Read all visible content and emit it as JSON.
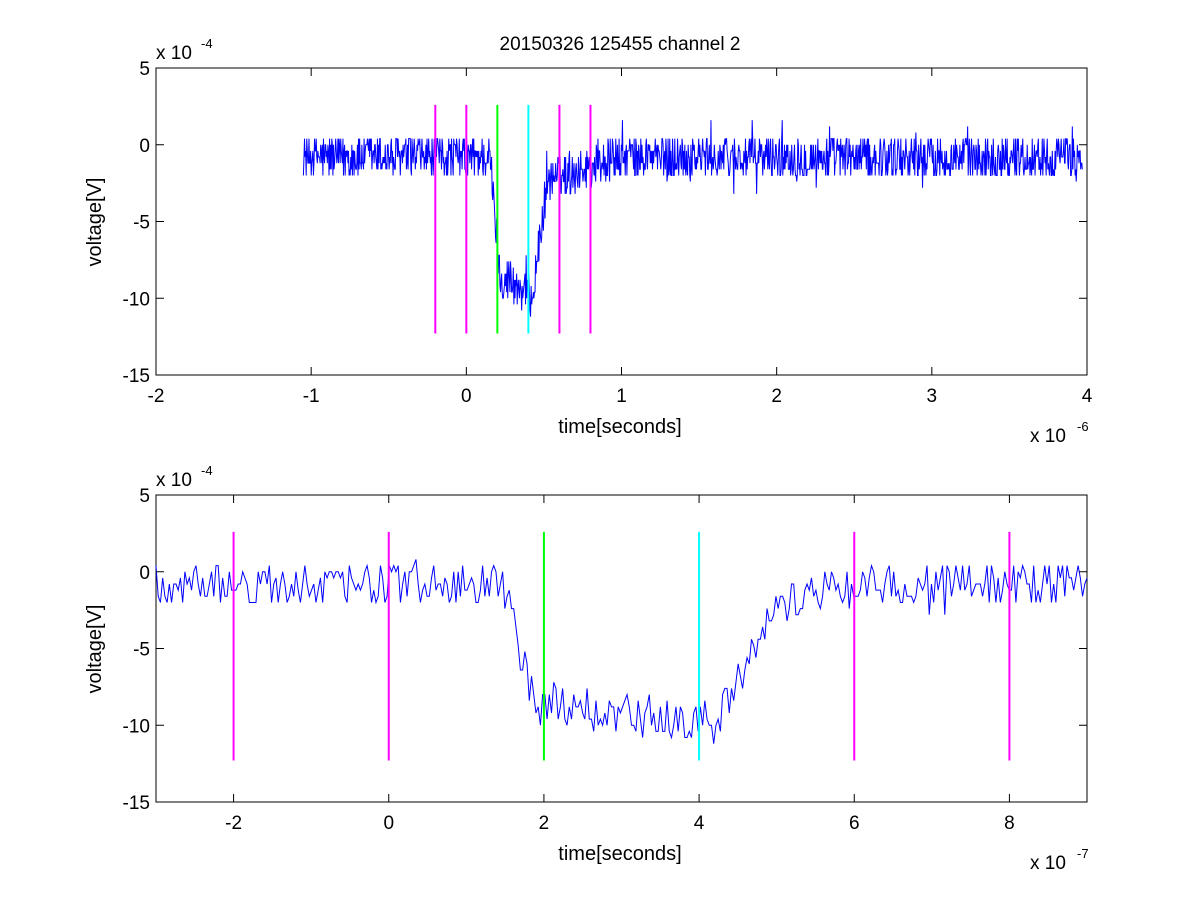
{
  "figure": {
    "title": "20150326 125455 channel 2"
  },
  "chart_data": [
    {
      "type": "line",
      "title": "20150326 125455 channel 2",
      "xlabel": "time[seconds]",
      "ylabel": "voltage[V]",
      "x_exponent_label": "x 10",
      "x_exponent": "-6",
      "y_exponent_label": "x 10",
      "y_exponent": "-4",
      "xlim": [
        -2,
        4
      ],
      "ylim": [
        -15,
        5
      ],
      "xticks": [
        "-2",
        "-1",
        "0",
        "1",
        "2",
        "3",
        "4"
      ],
      "yticks": [
        "5",
        "0",
        "-5",
        "-10",
        "-15"
      ],
      "grid": false,
      "signal": {
        "color": "#0000ff",
        "x_start": -1.05,
        "x_end": 3.97,
        "baseline": -0.8,
        "noise": 1.4,
        "pulse_down_start": 0.15,
        "pulse_low_begin": 0.22,
        "pulse_up_start": 0.43,
        "pulse_up_end": 0.52,
        "pulse_level": -8.6,
        "recovery_end": 1.0
      },
      "markers": [
        {
          "x": -0.2,
          "color": "#ff00ff",
          "top": 2.6,
          "bottom": -12.3
        },
        {
          "x": 0.0,
          "color": "#ff00ff",
          "top": 2.6,
          "bottom": -12.3
        },
        {
          "x": 0.2,
          "color": "#00ff00",
          "top": 2.6,
          "bottom": -12.3
        },
        {
          "x": 0.4,
          "color": "#00ffff",
          "top": 2.6,
          "bottom": -12.3
        },
        {
          "x": 0.6,
          "color": "#ff00ff",
          "top": 2.6,
          "bottom": -12.3
        },
        {
          "x": 0.8,
          "color": "#ff00ff",
          "top": 2.6,
          "bottom": -12.3
        }
      ]
    },
    {
      "type": "line",
      "title": "",
      "xlabel": "time[seconds]",
      "ylabel": "voltage[V]",
      "x_exponent_label": "x 10",
      "x_exponent": "-7",
      "y_exponent_label": "x 10",
      "y_exponent": "-4",
      "xlim": [
        -3,
        9
      ],
      "ylim": [
        -15,
        5
      ],
      "xticks": [
        "-2",
        "0",
        "2",
        "4",
        "6",
        "8"
      ],
      "yticks": [
        "5",
        "0",
        "-5",
        "-10",
        "-15"
      ],
      "grid": false,
      "signal": {
        "color": "#0000ff",
        "x_start": -3,
        "x_end": 9,
        "baseline": -0.8,
        "noise": 1.4,
        "pulse_down_start": 1.45,
        "pulse_low_begin": 1.9,
        "pulse_up_start": 4.25,
        "pulse_up_end": 4.9,
        "pulse_level": -8.6,
        "recovery_end": 6.0
      },
      "markers": [
        {
          "x": -2,
          "color": "#ff00ff",
          "top": 2.6,
          "bottom": -12.3
        },
        {
          "x": 0,
          "color": "#ff00ff",
          "top": 2.6,
          "bottom": -12.3
        },
        {
          "x": 2,
          "color": "#00ff00",
          "top": 2.6,
          "bottom": -12.3
        },
        {
          "x": 4,
          "color": "#00ffff",
          "top": 2.6,
          "bottom": -12.3
        },
        {
          "x": 6,
          "color": "#ff00ff",
          "top": 2.6,
          "bottom": -12.3
        },
        {
          "x": 8,
          "color": "#ff00ff",
          "top": 2.6,
          "bottom": -12.3
        }
      ]
    }
  ]
}
